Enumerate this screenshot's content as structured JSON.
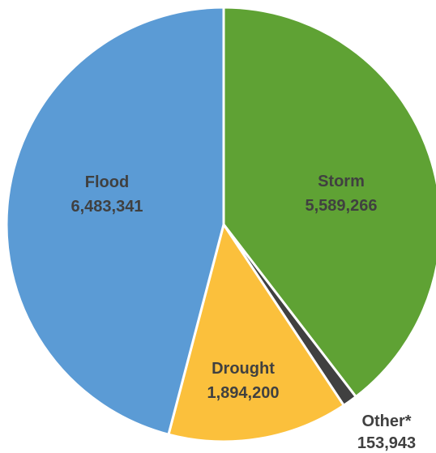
{
  "chart_data": {
    "type": "pie",
    "start_angle_deg": 0,
    "direction": "clockwise",
    "slices": [
      {
        "name": "Storm",
        "value": 5589266,
        "value_label": "5,589,266",
        "color": "#5FA234",
        "label_color": "#404040",
        "value_color": "#404040"
      },
      {
        "name": "Other*",
        "value": 153943,
        "value_label": "153,943",
        "color": "#404040",
        "label_color": "#404040",
        "value_color": "#404040"
      },
      {
        "name": "Drought",
        "value": 1894200,
        "value_label": "1,894,200",
        "color": "#FBC03C",
        "label_color": "#404040",
        "value_color": "#404040"
      },
      {
        "name": "Flood",
        "value": 6483341,
        "value_label": "6,483,341",
        "color": "#5B9BD5",
        "label_color": "#404040",
        "value_color": "#404040"
      }
    ],
    "slice_border_color": "#ffffff"
  }
}
